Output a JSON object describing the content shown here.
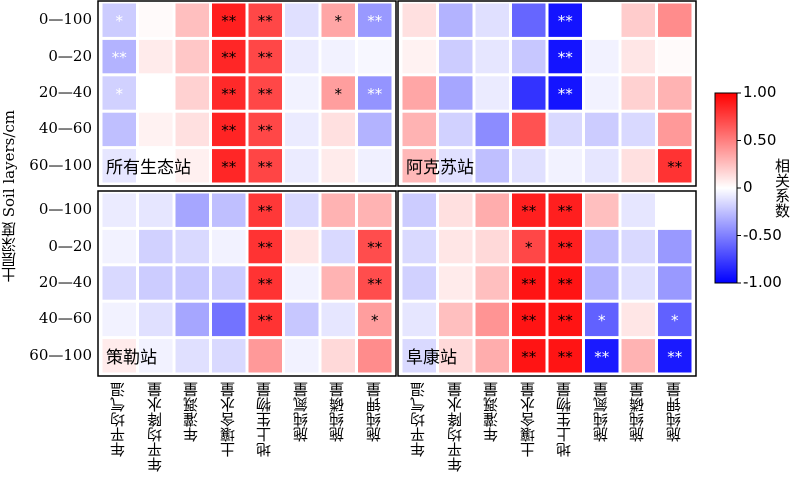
{
  "chart_data": {
    "type": "heatmap",
    "ylabel": "土层深度 Soil layers/cm",
    "rows": [
      "0—100",
      "0—20",
      "20—40",
      "40—60",
      "60—100"
    ],
    "columns": [
      "年平均气温",
      "年平均降水量",
      "年灌溉量",
      "土壤含水量",
      "地上生物量",
      "施纯氮量",
      "施纯磷量",
      "施纯钾量"
    ],
    "colorbar": {
      "label": "相关系数",
      "range": [
        -1,
        1
      ],
      "ticks": [
        "1.00",
        "0.50",
        "0",
        "-0.50",
        "-1.00"
      ],
      "colors": {
        "neg": "#0000ff",
        "mid": "#ffffff",
        "pos": "#ff0000"
      }
    },
    "panels": [
      {
        "name": "所有生态站",
        "values": [
          [
            -0.2,
            0.02,
            0.25,
            0.88,
            0.72,
            -0.12,
            0.35,
            -0.4
          ],
          [
            -0.3,
            0.08,
            0.22,
            0.85,
            0.72,
            -0.08,
            -0.05,
            -0.03
          ],
          [
            -0.18,
            0.0,
            0.18,
            0.84,
            0.72,
            -0.05,
            0.38,
            -0.42
          ],
          [
            -0.25,
            0.05,
            0.12,
            0.86,
            0.72,
            -0.08,
            0.12,
            -0.3
          ],
          [
            -0.1,
            0.0,
            0.06,
            0.85,
            0.73,
            -0.08,
            0.08,
            -0.06
          ]
        ],
        "significance": [
          [
            "*",
            "",
            "",
            "**",
            "**",
            "",
            "*",
            "**"
          ],
          [
            "**",
            "",
            "",
            "**",
            "**",
            "",
            "",
            ""
          ],
          [
            "*",
            "",
            "",
            "**",
            "**",
            "",
            "*",
            "**"
          ],
          [
            "",
            "",
            "",
            "**",
            "**",
            "",
            "",
            ""
          ],
          [
            "",
            "",
            "",
            "**",
            "**",
            "",
            "",
            ""
          ]
        ]
      },
      {
        "name": "阿克苏站",
        "values": [
          [
            0.12,
            -0.3,
            -0.12,
            -0.6,
            -0.92,
            0.0,
            0.2,
            0.45
          ],
          [
            0.05,
            -0.2,
            -0.1,
            -0.22,
            -0.92,
            -0.05,
            0.1,
            0.02
          ],
          [
            0.35,
            -0.35,
            -0.08,
            -0.8,
            -0.92,
            -0.05,
            0.18,
            0.3
          ],
          [
            0.3,
            -0.18,
            -0.45,
            0.68,
            -0.15,
            -0.2,
            -0.15,
            0.4
          ],
          [
            0.28,
            -0.12,
            -0.25,
            -0.12,
            -0.05,
            -0.1,
            0.12,
            0.8
          ]
        ],
        "significance": [
          [
            "",
            "",
            "",
            "",
            "**",
            "",
            "",
            ""
          ],
          [
            "",
            "",
            "",
            "",
            "**",
            "",
            "",
            ""
          ],
          [
            "",
            "",
            "",
            "",
            "**",
            "",
            "",
            ""
          ],
          [
            "",
            "",
            "",
            "",
            "",
            "",
            "",
            ""
          ],
          [
            "",
            "",
            "",
            "",
            "",
            "",
            "",
            "**"
          ]
        ]
      },
      {
        "name": "策勒站",
        "values": [
          [
            -0.08,
            -0.1,
            -0.35,
            -0.25,
            0.78,
            -0.15,
            0.3,
            0.3
          ],
          [
            -0.05,
            -0.18,
            -0.15,
            -0.05,
            0.8,
            0.1,
            -0.15,
            0.7
          ],
          [
            -0.15,
            -0.2,
            -0.22,
            -0.2,
            0.8,
            -0.05,
            0.3,
            0.7
          ],
          [
            -0.05,
            -0.12,
            -0.35,
            -0.55,
            0.8,
            -0.22,
            -0.1,
            0.38
          ],
          [
            0.08,
            -0.05,
            -0.12,
            -0.15,
            0.4,
            -0.05,
            0.15,
            0.45
          ]
        ],
        "significance": [
          [
            "",
            "",
            "",
            "",
            "**",
            "",
            "",
            ""
          ],
          [
            "",
            "",
            "",
            "",
            "**",
            "",
            "",
            "**"
          ],
          [
            "",
            "",
            "",
            "",
            "**",
            "",
            "",
            "**"
          ],
          [
            "",
            "",
            "",
            "",
            "**",
            "",
            "",
            "*"
          ],
          [
            "",
            "",
            "",
            "",
            "",
            "",
            "",
            ""
          ]
        ]
      },
      {
        "name": "阜康站",
        "values": [
          [
            -0.2,
            0.12,
            0.32,
            0.88,
            0.88,
            0.25,
            -0.1,
            0.0
          ],
          [
            -0.15,
            0.1,
            0.15,
            0.72,
            0.88,
            -0.25,
            -0.15,
            -0.4
          ],
          [
            -0.18,
            0.08,
            0.25,
            0.92,
            0.92,
            -0.3,
            -0.12,
            -0.4
          ],
          [
            -0.1,
            0.25,
            0.42,
            0.92,
            0.92,
            -0.62,
            0.1,
            -0.62
          ],
          [
            -0.15,
            0.15,
            0.32,
            0.92,
            0.92,
            -0.9,
            0.3,
            -0.9
          ]
        ],
        "significance": [
          [
            "",
            "",
            "",
            "**",
            "**",
            "",
            "",
            ""
          ],
          [
            "",
            "",
            "",
            "*",
            "**",
            "",
            "",
            ""
          ],
          [
            "",
            "",
            "",
            "**",
            "**",
            "",
            "",
            ""
          ],
          [
            "",
            "",
            "",
            "**",
            "**",
            "*",
            "",
            "*"
          ],
          [
            "",
            "",
            "",
            "**",
            "**",
            "**",
            "",
            "**"
          ]
        ]
      }
    ]
  }
}
